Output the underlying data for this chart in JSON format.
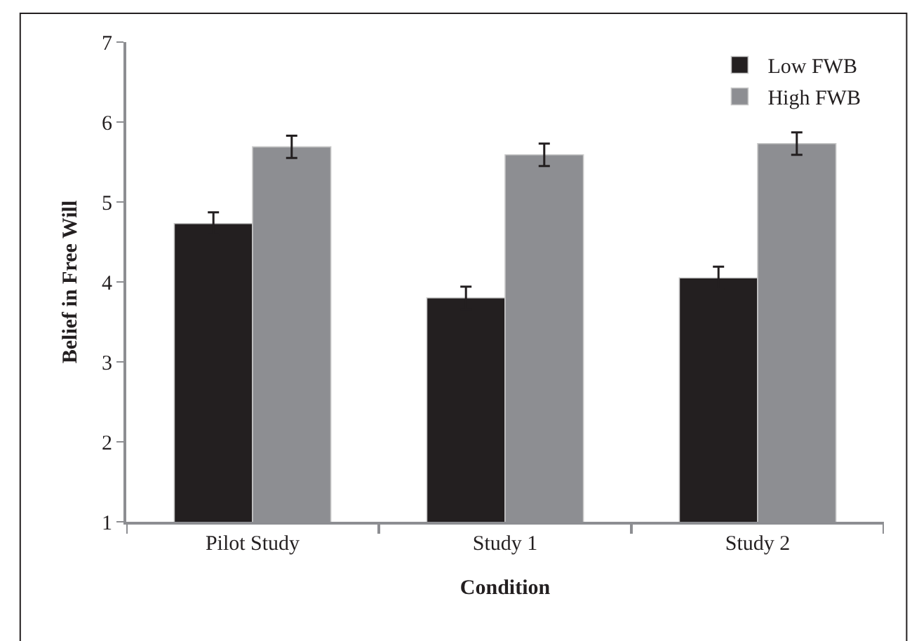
{
  "chart_data": {
    "type": "bar",
    "xlabel": "Condition",
    "ylabel": "Belief in Free Will",
    "categories": [
      "Pilot Study",
      "Study 1",
      "Study 2"
    ],
    "series": [
      {
        "name": "Low FWB",
        "color": "#231f20",
        "values": [
          4.73,
          3.8,
          4.05
        ],
        "errors": [
          0.14,
          0.14,
          0.14
        ]
      },
      {
        "name": "High FWB",
        "color": "#8d8e92",
        "values": [
          5.69,
          5.59,
          5.73
        ],
        "errors": [
          0.14,
          0.14,
          0.14
        ]
      }
    ],
    "ylim": [
      1,
      7
    ],
    "yticks": [
      1,
      2,
      3,
      4,
      5,
      6,
      7
    ],
    "legend": "top right"
  }
}
